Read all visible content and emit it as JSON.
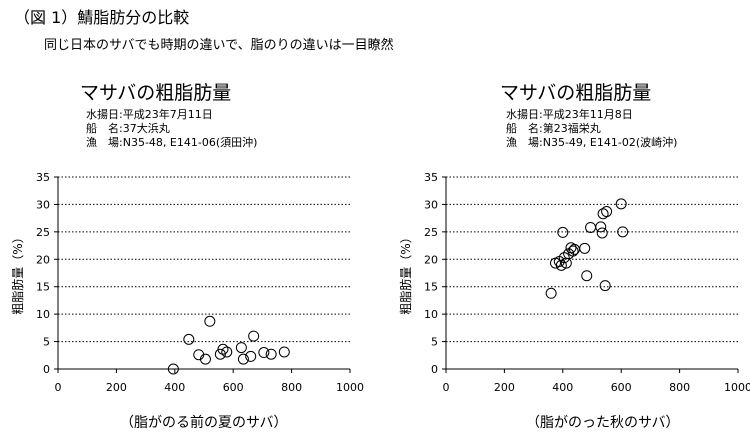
{
  "figure_title": "（図 1）鯖脂肪分の比較",
  "figure_subtitle": "同じ日本のサバでも時期の違いで、脂のりの違いは一目瞭然",
  "style": {
    "grid_color": "#000000",
    "marker_color": "#000000"
  },
  "chart_data": [
    {
      "type": "scatter",
      "title": "マサバの粗脂肪量",
      "info": [
        {
          "label": "水揚日",
          "value": "平成23年7月11日"
        },
        {
          "label": "船　名",
          "value": "37大浜丸"
        },
        {
          "label": "漁　場",
          "value": "N35-48, E141-06(須田沖)"
        }
      ],
      "caption": "（脂がのる前の夏のサバ）",
      "xlabel": "",
      "ylabel": "粗脂肪量（%）",
      "xlim": [
        0,
        1000
      ],
      "ylim": [
        0,
        35
      ],
      "xticks": [
        "0",
        "200",
        "400",
        "600",
        "800",
        "1000"
      ],
      "yticks": [
        "0",
        "5",
        "10",
        "15",
        "20",
        "25",
        "30",
        "35"
      ],
      "grid": "horizontal dotted",
      "points": [
        {
          "x": 395,
          "y": 0.0
        },
        {
          "x": 448,
          "y": 5.4
        },
        {
          "x": 482,
          "y": 2.6
        },
        {
          "x": 505,
          "y": 1.8
        },
        {
          "x": 520,
          "y": 8.7
        },
        {
          "x": 556,
          "y": 2.7
        },
        {
          "x": 565,
          "y": 3.6
        },
        {
          "x": 578,
          "y": 3.1
        },
        {
          "x": 628,
          "y": 3.9
        },
        {
          "x": 635,
          "y": 1.8
        },
        {
          "x": 660,
          "y": 2.3
        },
        {
          "x": 670,
          "y": 6.0
        },
        {
          "x": 705,
          "y": 3.0
        },
        {
          "x": 730,
          "y": 2.7
        },
        {
          "x": 775,
          "y": 3.1
        }
      ]
    },
    {
      "type": "scatter",
      "title": "マサバの粗脂肪量",
      "info": [
        {
          "label": "水揚日",
          "value": "平成23年11月8日"
        },
        {
          "label": "船　名",
          "value": "第23福栄丸"
        },
        {
          "label": "漁　場",
          "value": "N35-49, E141-02(波崎沖)"
        }
      ],
      "caption": "（脂がのった秋のサバ）",
      "xlabel": "",
      "ylabel": "粗脂肪量（%）",
      "xlim": [
        0,
        1000
      ],
      "ylim": [
        0,
        35
      ],
      "xticks": [
        "0",
        "200",
        "400",
        "600",
        "800",
        "1000"
      ],
      "yticks": [
        "0",
        "5",
        "10",
        "15",
        "20",
        "25",
        "30",
        "35"
      ],
      "grid": "horizontal dotted",
      "points": [
        {
          "x": 360,
          "y": 13.8
        },
        {
          "x": 375,
          "y": 19.3
        },
        {
          "x": 388,
          "y": 19.6
        },
        {
          "x": 395,
          "y": 18.9
        },
        {
          "x": 400,
          "y": 24.9
        },
        {
          "x": 405,
          "y": 20.3
        },
        {
          "x": 412,
          "y": 19.3
        },
        {
          "x": 420,
          "y": 21.0
        },
        {
          "x": 428,
          "y": 22.1
        },
        {
          "x": 435,
          "y": 21.5
        },
        {
          "x": 440,
          "y": 21.8
        },
        {
          "x": 475,
          "y": 22.0
        },
        {
          "x": 482,
          "y": 17.0
        },
        {
          "x": 495,
          "y": 25.8
        },
        {
          "x": 530,
          "y": 25.9
        },
        {
          "x": 535,
          "y": 24.8
        },
        {
          "x": 538,
          "y": 28.3
        },
        {
          "x": 545,
          "y": 15.2
        },
        {
          "x": 550,
          "y": 28.7
        },
        {
          "x": 600,
          "y": 30.1
        },
        {
          "x": 605,
          "y": 25.0
        }
      ]
    }
  ]
}
